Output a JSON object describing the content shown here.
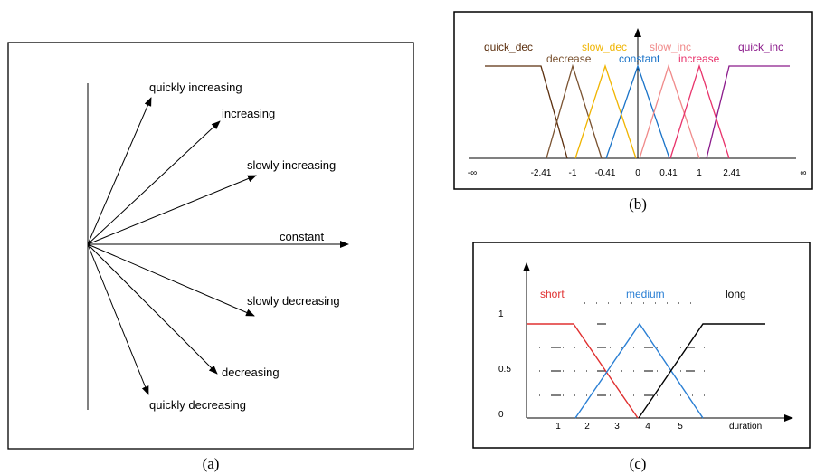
{
  "panel_a": {
    "caption": "(a)",
    "labels": {
      "quickly_increasing": "quickly increasing",
      "increasing": "increasing",
      "slowly_increasing": "slowly increasing",
      "constant": "constant",
      "slowly_decreasing": "slowly decreasing",
      "decreasing": "decreasing",
      "quickly_decreasing": "quickly decreasing"
    }
  },
  "panel_b": {
    "caption": "(b)",
    "sets": {
      "quick_dec": "quick_dec",
      "decrease": "decrease",
      "slow_dec": "slow_dec",
      "constant": "constant",
      "slow_inc": "slow_inc",
      "increase": "increase",
      "quick_inc": "quick_inc"
    },
    "ticks": [
      "-∞",
      "-2.41",
      "-1",
      "-0.41",
      "0",
      "0.41",
      "1",
      "2.41",
      "∞"
    ],
    "colors": {
      "quick_dec": "#5a2d0c",
      "decrease": "#7a5230",
      "slow_dec": "#f0b400",
      "constant": "#1a73c8",
      "slow_inc": "#f08a8a",
      "increase": "#e8336b",
      "quick_inc": "#8b1a8b"
    }
  },
  "panel_c": {
    "caption": "(c)",
    "sets": {
      "short": "short",
      "medium": "medium",
      "long": "long"
    },
    "x_ticks": [
      "1",
      "2",
      "3",
      "4",
      "5"
    ],
    "y_ticks": [
      "1",
      "0.5",
      "0"
    ],
    "xlabel": "duration",
    "colors": {
      "short": "#e03030",
      "medium": "#2a7fd4",
      "long": "#000000"
    }
  }
}
